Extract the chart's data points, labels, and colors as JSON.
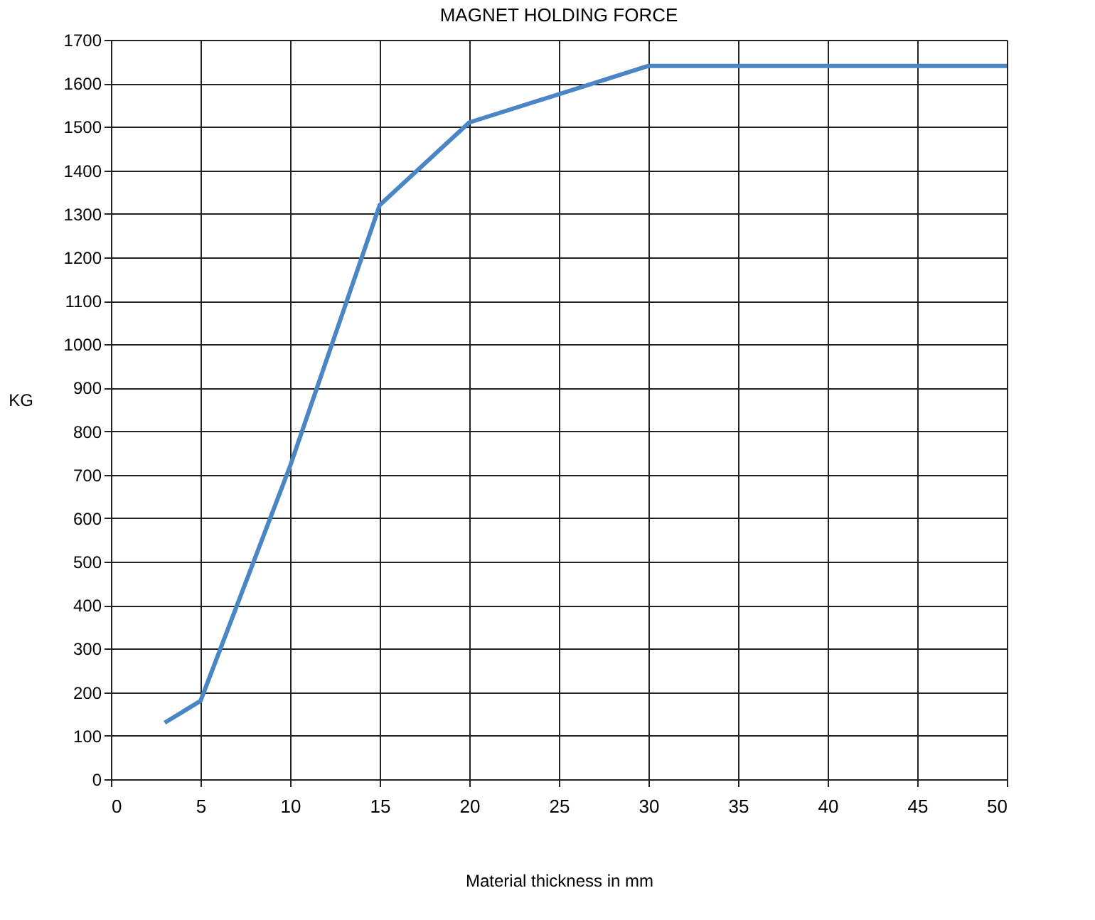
{
  "chart_data": {
    "type": "line",
    "title": "MAGNET   HOLDING   FORCE",
    "xlabel": "Material   thickness   in   mm",
    "ylabel": "KG",
    "x": [
      3,
      5,
      10,
      15,
      20,
      30,
      50
    ],
    "series": [
      {
        "color": "#4a86c5",
        "values": [
          130,
          180,
          720,
          1320,
          1510,
          1640,
          1640
        ]
      }
    ],
    "xlim": [
      0,
      50
    ],
    "xticks": [
      0,
      5,
      10,
      15,
      20,
      25,
      30,
      35,
      40,
      45,
      50
    ],
    "ylim": [
      0,
      1700
    ],
    "yticks": [
      0,
      100,
      200,
      300,
      400,
      500,
      600,
      700,
      800,
      900,
      1000,
      1100,
      1200,
      1300,
      1400,
      1500,
      1600,
      1700
    ],
    "grid": true,
    "marker": "none",
    "line_style": "solid"
  }
}
